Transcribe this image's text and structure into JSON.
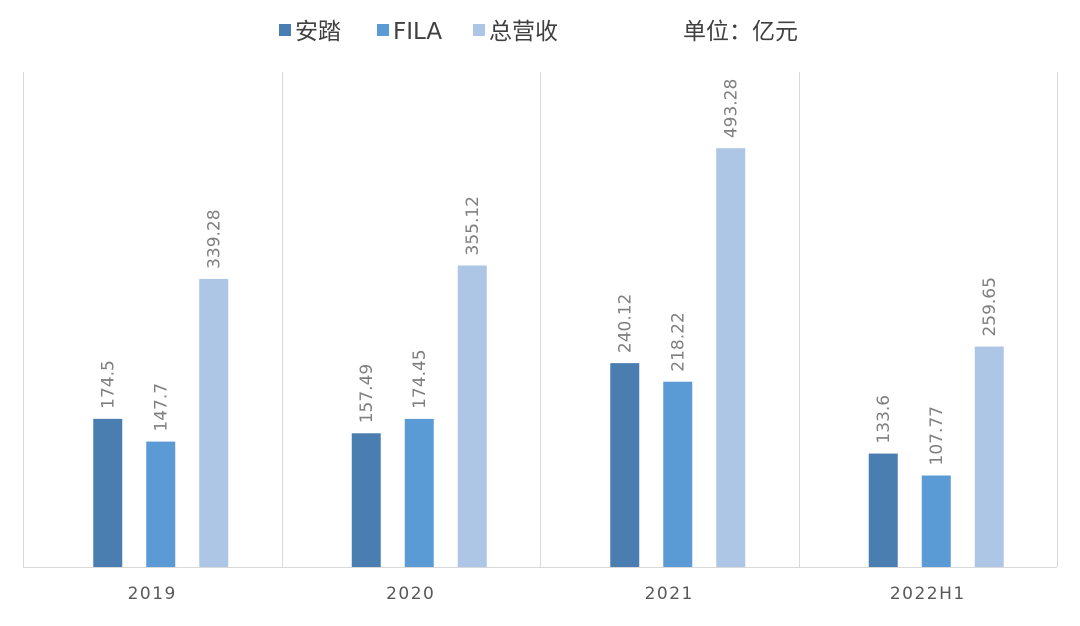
{
  "chart_data": {
    "type": "bar",
    "title": "",
    "xlabel": "",
    "ylabel": "",
    "unit_label": "单位：亿元",
    "categories": [
      "2019",
      "2020",
      "2021",
      "2022H1"
    ],
    "series": [
      {
        "name": "安踏",
        "values": [
          174.5,
          157.49,
          240.12,
          133.6
        ],
        "labels": [
          "174.5",
          "157.49",
          "240.12",
          "133.6"
        ],
        "color": "#4A7EB0"
      },
      {
        "name": "FILA",
        "values": [
          147.7,
          174.45,
          218.22,
          107.77
        ],
        "labels": [
          "147.7",
          "174.45",
          "218.22",
          "107.77"
        ],
        "color": "#5B9BD5"
      },
      {
        "name": "总营收",
        "values": [
          339.28,
          355.12,
          493.28,
          259.65
        ],
        "labels": [
          "339.28",
          "355.12",
          "493.28",
          "259.65"
        ],
        "color": "#AEC6E5"
      }
    ],
    "ylim": [
      0,
      583
    ],
    "grid": false,
    "category_separators": true,
    "legend_position": "top-center",
    "data_label_orientation": "vertical"
  }
}
